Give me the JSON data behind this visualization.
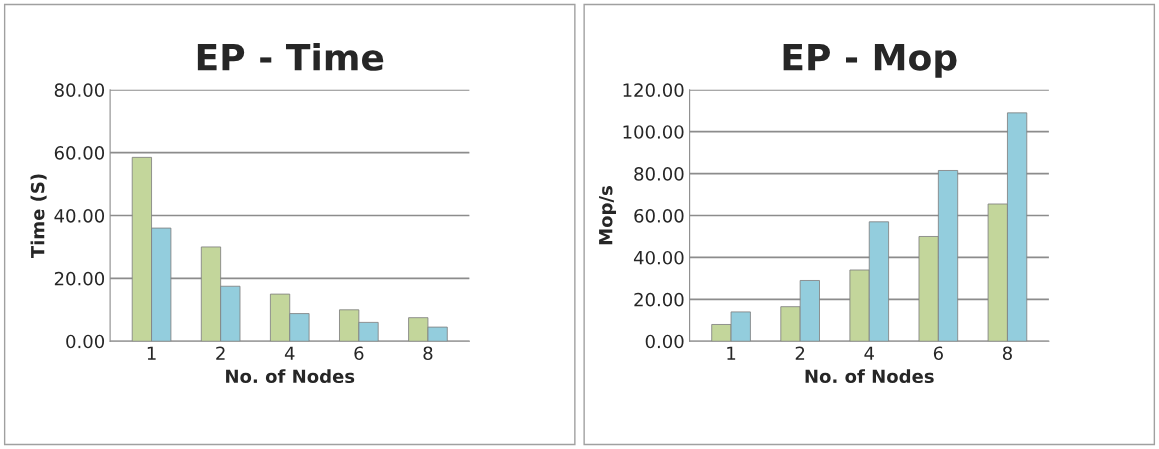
{
  "chart_data": [
    {
      "type": "bar",
      "title": "EP - Time",
      "xlabel": "No. of Nodes",
      "ylabel": "Time (S)",
      "categories": [
        "1",
        "2",
        "4",
        "6",
        "8"
      ],
      "series": [
        {
          "color": "#c3d69b",
          "values": [
            58.5,
            30,
            15,
            10,
            7.5
          ]
        },
        {
          "color": "#93cddd",
          "values": [
            36,
            17.5,
            8.8,
            6,
            4.5
          ]
        }
      ],
      "ylim": [
        0,
        80
      ],
      "yticks": [
        {
          "value": 0,
          "label": "0.00"
        },
        {
          "value": 20,
          "label": "20.00"
        },
        {
          "value": 40,
          "label": "40.00"
        },
        {
          "value": 60,
          "label": "60.00"
        },
        {
          "value": 80,
          "label": "80.00"
        }
      ],
      "grid": "y"
    },
    {
      "type": "bar",
      "title": "EP - Mop",
      "xlabel": "No. of Nodes",
      "ylabel": "Mop/s",
      "categories": [
        "1",
        "2",
        "4",
        "6",
        "8"
      ],
      "series": [
        {
          "color": "#c3d69b",
          "values": [
            8,
            16.5,
            34,
            50,
            65.5
          ]
        },
        {
          "color": "#93cddd",
          "values": [
            14,
            29,
            57,
            81.5,
            109
          ]
        }
      ],
      "ylim": [
        0,
        120
      ],
      "yticks": [
        {
          "value": 0,
          "label": "0.00"
        },
        {
          "value": 20,
          "label": "20.00"
        },
        {
          "value": 40,
          "label": "40.00"
        },
        {
          "value": 60,
          "label": "60.00"
        },
        {
          "value": 80,
          "label": "80.00"
        },
        {
          "value": 100,
          "label": "100.00"
        },
        {
          "value": 120,
          "label": "120.00"
        }
      ],
      "grid": "y"
    }
  ]
}
